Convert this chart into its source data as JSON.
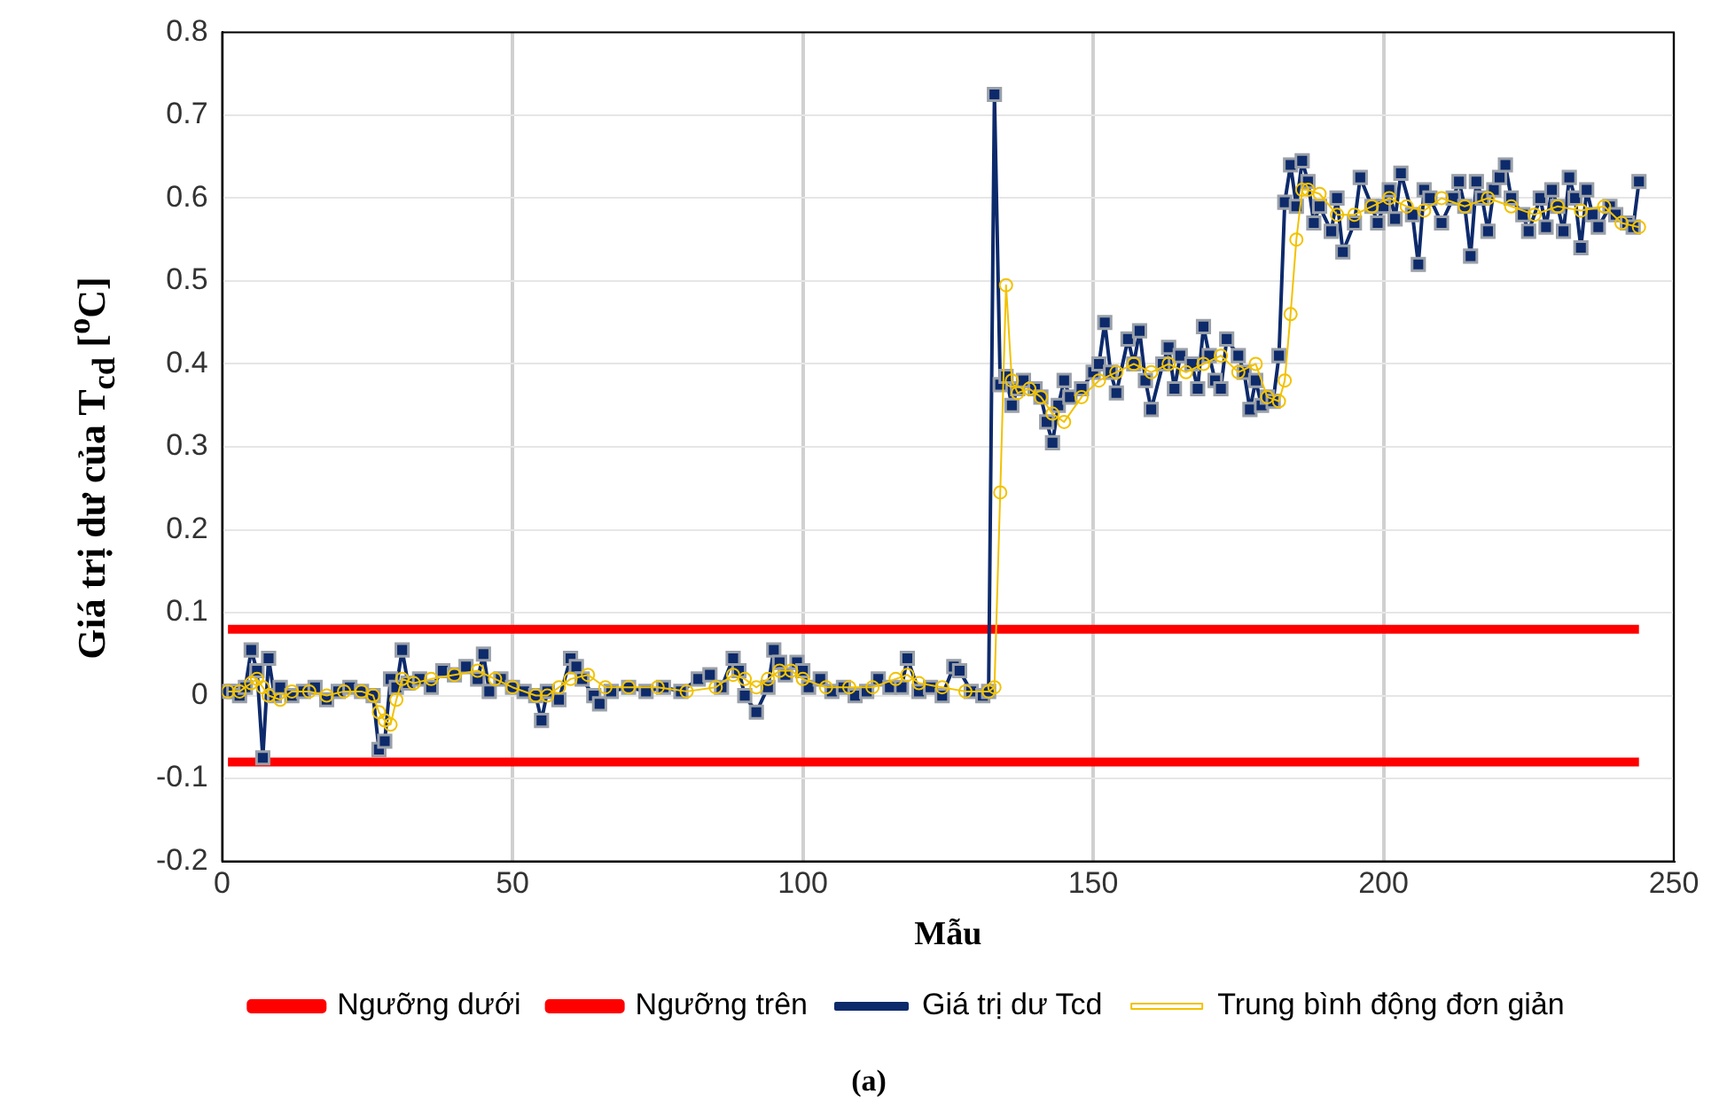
{
  "chart_data": {
    "type": "line",
    "xlabel": "Mẫu",
    "ylabel": "Giá trị dư của T$_{cd}$ [$^{o}$C]",
    "annotations": [
      "(a)"
    ],
    "xlim": [
      0,
      250
    ],
    "xticks": [
      0,
      50,
      100,
      150,
      200,
      250
    ],
    "ylim": [
      -0.2,
      0.8
    ],
    "yticks": [
      -0.2,
      -0.1,
      0,
      0.1,
      0.2,
      0.3,
      0.4,
      0.5,
      0.6,
      0.7,
      0.8
    ],
    "grid": true,
    "legend": "bottom",
    "series": [
      {
        "name": "Ngưỡng dưới",
        "color": "#ff0000",
        "x": [
          1,
          244
        ],
        "values": [
          -0.08,
          -0.08
        ]
      },
      {
        "name": "Ngưỡng trên",
        "color": "#ff0000",
        "x": [
          1,
          244
        ],
        "values": [
          0.08,
          0.08
        ]
      },
      {
        "name": "Giá trị dư Tcd",
        "color": "#0d2a6b",
        "marker": "square",
        "x": [
          1,
          2,
          3,
          4,
          5,
          6,
          7,
          8,
          9,
          10,
          12,
          14,
          16,
          18,
          20,
          22,
          24,
          26,
          27,
          28,
          29,
          30,
          31,
          32,
          34,
          36,
          38,
          40,
          42,
          44,
          45,
          46,
          48,
          50,
          52,
          54,
          55,
          56,
          58,
          60,
          61,
          62,
          64,
          65,
          67,
          70,
          73,
          76,
          79,
          82,
          84,
          86,
          88,
          89,
          90,
          92,
          94,
          95,
          96,
          97,
          99,
          100,
          101,
          103,
          105,
          107,
          109,
          111,
          113,
          115,
          117,
          118,
          120,
          122,
          124,
          126,
          127,
          129,
          131,
          132,
          133,
          134,
          135,
          136,
          137,
          138,
          140,
          141,
          142,
          143,
          144,
          145,
          146,
          148,
          150,
          151,
          152,
          153,
          154,
          156,
          157,
          158,
          159,
          160,
          162,
          163,
          164,
          165,
          167,
          168,
          169,
          170,
          171,
          172,
          173,
          175,
          176,
          177,
          178,
          179,
          180,
          181,
          182,
          183,
          184,
          185,
          186,
          187,
          188,
          189,
          191,
          192,
          193,
          195,
          196,
          198,
          199,
          200,
          201,
          202,
          203,
          205,
          206,
          207,
          208,
          210,
          212,
          213,
          214,
          215,
          216,
          217,
          218,
          219,
          220,
          221,
          222,
          224,
          225,
          227,
          228,
          229,
          230,
          231,
          232,
          233,
          234,
          235,
          236,
          237,
          239,
          240,
          242,
          243,
          244
        ],
        "values": [
          0.005,
          0.005,
          0,
          0.01,
          0.055,
          0.03,
          -0.075,
          0.045,
          0,
          0.01,
          0,
          0.005,
          0.01,
          -0.005,
          0.005,
          0.01,
          0.005,
          0,
          -0.065,
          -0.055,
          0.02,
          0.01,
          0.055,
          0.015,
          0.02,
          0.01,
          0.03,
          0.025,
          0.035,
          0.02,
          0.05,
          0.005,
          0.02,
          0.01,
          0.005,
          0,
          -0.03,
          0.005,
          -0.005,
          0.045,
          0.035,
          0.02,
          0,
          -0.01,
          0.005,
          0.01,
          0.005,
          0.01,
          0.005,
          0.02,
          0.025,
          0.01,
          0.045,
          0.03,
          0,
          -0.02,
          0.01,
          0.055,
          0.04,
          0.025,
          0.04,
          0.03,
          0.01,
          0.02,
          0.005,
          0.01,
          0,
          0.005,
          0.02,
          0.01,
          0.01,
          0.045,
          0.005,
          0.01,
          0,
          0.035,
          0.03,
          0.005,
          0,
          0.005,
          0.725,
          0.375,
          0.385,
          0.35,
          0.37,
          0.38,
          0.37,
          0.36,
          0.33,
          0.305,
          0.35,
          0.38,
          0.36,
          0.37,
          0.39,
          0.4,
          0.45,
          0.39,
          0.365,
          0.43,
          0.4,
          0.44,
          0.38,
          0.345,
          0.4,
          0.42,
          0.37,
          0.41,
          0.4,
          0.37,
          0.445,
          0.41,
          0.38,
          0.37,
          0.43,
          0.41,
          0.39,
          0.345,
          0.38,
          0.35,
          0.36,
          0.355,
          0.41,
          0.595,
          0.64,
          0.59,
          0.645,
          0.62,
          0.57,
          0.59,
          0.56,
          0.6,
          0.535,
          0.57,
          0.625,
          0.59,
          0.57,
          0.59,
          0.61,
          0.575,
          0.63,
          0.58,
          0.52,
          0.61,
          0.6,
          0.57,
          0.6,
          0.62,
          0.59,
          0.53,
          0.62,
          0.6,
          0.56,
          0.61,
          0.625,
          0.64,
          0.6,
          0.58,
          0.56,
          0.6,
          0.565,
          0.61,
          0.59,
          0.56,
          0.625,
          0.6,
          0.54,
          0.61,
          0.58,
          0.565,
          0.59,
          0.58,
          0.57,
          0.565,
          0.62
        ]
      },
      {
        "name": "Trung bình động đơn giản",
        "color": "#f2c200",
        "marker": "circle",
        "x": [
          1,
          3,
          5,
          6,
          7,
          8,
          10,
          12,
          15,
          18,
          21,
          24,
          26,
          27,
          28,
          29,
          30,
          31,
          33,
          36,
          40,
          44,
          47,
          50,
          54,
          56,
          58,
          60,
          63,
          66,
          70,
          75,
          80,
          85,
          88,
          90,
          92,
          94,
          96,
          98,
          100,
          104,
          108,
          112,
          116,
          118,
          120,
          124,
          128,
          132,
          133,
          134,
          135,
          136,
          137,
          139,
          141,
          143,
          145,
          148,
          151,
          154,
          157,
          160,
          163,
          166,
          169,
          172,
          175,
          178,
          180,
          182,
          183,
          184,
          185,
          186,
          187,
          189,
          192,
          195,
          198,
          201,
          204,
          207,
          210,
          214,
          218,
          222,
          226,
          230,
          234,
          238,
          241,
          244
        ],
        "values": [
          0.005,
          0.005,
          0.015,
          0.02,
          0.01,
          0,
          -0.005,
          0.005,
          0.005,
          0,
          0.005,
          0.005,
          0,
          -0.02,
          -0.03,
          -0.035,
          -0.005,
          0.02,
          0.015,
          0.02,
          0.025,
          0.03,
          0.02,
          0.01,
          0,
          0,
          0.01,
          0.02,
          0.025,
          0.01,
          0.01,
          0.01,
          0.005,
          0.01,
          0.025,
          0.02,
          0.01,
          0.02,
          0.03,
          0.03,
          0.02,
          0.01,
          0.01,
          0.01,
          0.02,
          0.025,
          0.015,
          0.01,
          0.005,
          0.005,
          0.01,
          0.245,
          0.495,
          0.38,
          0.365,
          0.37,
          0.36,
          0.34,
          0.33,
          0.36,
          0.38,
          0.39,
          0.4,
          0.39,
          0.4,
          0.39,
          0.4,
          0.41,
          0.39,
          0.4,
          0.36,
          0.355,
          0.38,
          0.46,
          0.55,
          0.61,
          0.61,
          0.605,
          0.58,
          0.58,
          0.59,
          0.6,
          0.59,
          0.585,
          0.6,
          0.59,
          0.6,
          0.59,
          0.58,
          0.59,
          0.585,
          0.59,
          0.57,
          0.565
        ]
      }
    ]
  }
}
